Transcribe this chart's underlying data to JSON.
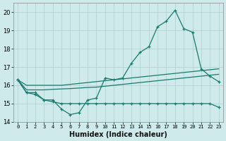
{
  "xlabel": "Humidex (Indice chaleur)",
  "x": [
    0,
    1,
    2,
    3,
    4,
    5,
    6,
    7,
    8,
    9,
    10,
    11,
    12,
    13,
    14,
    15,
    16,
    17,
    18,
    19,
    20,
    21,
    22,
    23
  ],
  "line_main": [
    16.3,
    15.6,
    15.6,
    15.2,
    15.2,
    14.7,
    14.4,
    14.5,
    15.2,
    15.3,
    16.4,
    16.3,
    16.4,
    17.2,
    17.8,
    18.1,
    19.2,
    19.5,
    20.1,
    19.1,
    18.9,
    16.9,
    16.5,
    16.2
  ],
  "line_flat": [
    16.3,
    15.6,
    15.5,
    15.2,
    15.1,
    15.0,
    15.0,
    15.0,
    15.0,
    15.0,
    15.0,
    15.0,
    15.0,
    15.0,
    15.0,
    15.0,
    15.0,
    15.0,
    15.0,
    15.0,
    15.0,
    15.0,
    15.0,
    14.8
  ],
  "line_trend1": [
    16.3,
    16.0,
    16.0,
    16.0,
    16.0,
    16.0,
    16.05,
    16.1,
    16.15,
    16.2,
    16.25,
    16.3,
    16.35,
    16.4,
    16.45,
    16.5,
    16.55,
    16.6,
    16.65,
    16.7,
    16.75,
    16.8,
    16.85,
    16.9
  ],
  "line_trend2": [
    16.3,
    15.75,
    15.75,
    15.75,
    15.78,
    15.8,
    15.82,
    15.85,
    15.88,
    15.9,
    15.95,
    16.0,
    16.05,
    16.1,
    16.15,
    16.2,
    16.25,
    16.3,
    16.35,
    16.4,
    16.45,
    16.5,
    16.55,
    16.6
  ],
  "color": "#1a7a6e",
  "ylim": [
    14,
    20.5
  ],
  "xlim": [
    -0.5,
    23.5
  ],
  "yticks": [
    14,
    15,
    16,
    17,
    18,
    19,
    20
  ],
  "xticks": [
    0,
    1,
    2,
    3,
    4,
    5,
    6,
    7,
    8,
    9,
    10,
    11,
    12,
    13,
    14,
    15,
    16,
    17,
    18,
    19,
    20,
    21,
    22,
    23
  ],
  "bg_color": "#ceeaea",
  "grid_color": "#aecece"
}
